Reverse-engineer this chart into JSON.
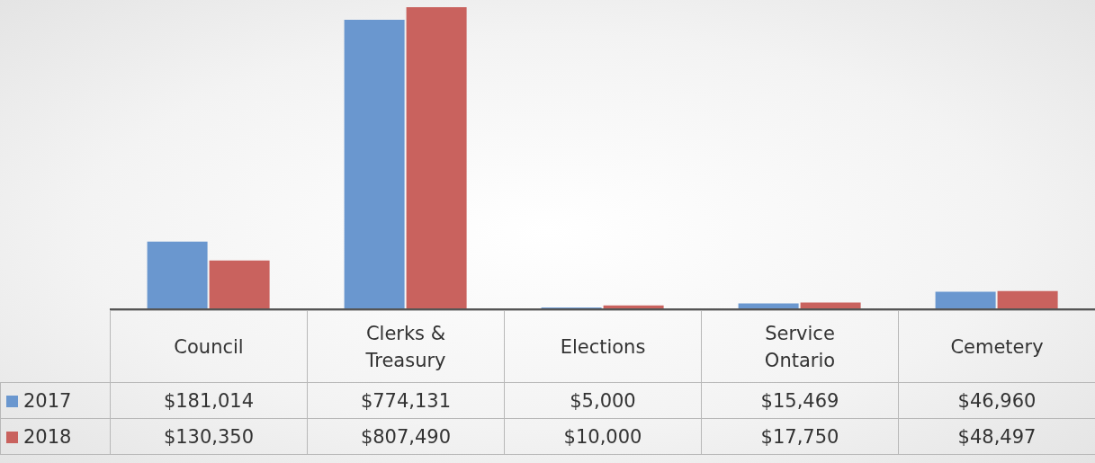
{
  "chart_data": {
    "type": "bar",
    "categories": [
      "Council",
      "Clerks & Treasury",
      "Elections",
      "Service Ontario",
      "Cemetery"
    ],
    "series": [
      {
        "name": "2017",
        "color": "#6a97cf",
        "values": [
          181014,
          774131,
          5000,
          15469,
          46960
        ],
        "value_labels": [
          "$181,014",
          "$774,131",
          "$5,000",
          "$15,469",
          "$46,960"
        ]
      },
      {
        "name": "2018",
        "color": "#c9625e",
        "values": [
          130350,
          807490,
          10000,
          17750,
          48497
        ],
        "value_labels": [
          "$130,350",
          "$807,490",
          "$10,000",
          "$17,750",
          "$48,497"
        ]
      }
    ],
    "legend": "bottom left",
    "grid": false
  }
}
